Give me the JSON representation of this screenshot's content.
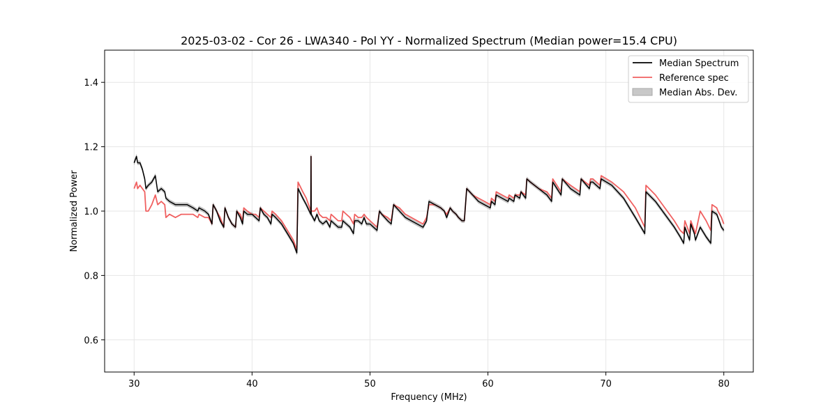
{
  "chart_data": {
    "type": "line",
    "title": "2025-03-02 - Cor 26 - LWA340 - Pol YY - Normalized Spectrum (Median power=15.4 CPU)",
    "xlabel": "Frequency (MHz)",
    "ylabel": "Normalized Power",
    "xlim": [
      27.5,
      82.5
    ],
    "ylim": [
      0.5,
      1.5
    ],
    "xticks": [
      30,
      40,
      50,
      60,
      70,
      80
    ],
    "yticks": [
      0.6,
      0.8,
      1.0,
      1.2,
      1.4
    ],
    "xtick_labels": [
      "30",
      "40",
      "50",
      "60",
      "70",
      "80"
    ],
    "ytick_labels": [
      "0.6",
      "0.8",
      "1.0",
      "1.2",
      "1.4"
    ],
    "grid": true,
    "legend_position": "top-right",
    "legend": [
      "Median Spectrum",
      "Reference spec",
      "Median Abs. Dev."
    ],
    "colors": {
      "median": "#000000",
      "reference": "#f06060",
      "mad_fill": "#c8c8c8",
      "grid": "#e6e6e6"
    },
    "mad_halfwidth": 0.006,
    "series": [
      {
        "name": "Median Spectrum",
        "x": [
          30.0,
          30.2,
          30.3,
          30.5,
          30.7,
          30.9,
          31.0,
          31.2,
          31.5,
          31.8,
          32.0,
          32.3,
          32.6,
          32.7,
          33.0,
          33.5,
          34.0,
          34.5,
          35.0,
          35.4,
          35.5,
          36.0,
          36.3,
          36.6,
          36.7,
          37.0,
          37.3,
          37.6,
          37.7,
          38.0,
          38.3,
          38.6,
          38.7,
          39.0,
          39.2,
          39.3,
          39.6,
          40.0,
          40.3,
          40.6,
          40.7,
          41.0,
          41.3,
          41.6,
          41.7,
          42.0,
          42.5,
          43.0,
          43.5,
          43.8,
          43.9,
          44.3,
          44.6,
          44.98,
          45.0,
          45.02,
          45.3,
          45.5,
          45.7,
          46.0,
          46.3,
          46.6,
          46.7,
          47.0,
          47.3,
          47.6,
          47.7,
          48.0,
          48.3,
          48.6,
          48.7,
          49.0,
          49.3,
          49.5,
          49.7,
          50.0,
          50.3,
          50.6,
          50.8,
          51.0,
          51.5,
          51.8,
          52.0,
          52.5,
          53.0,
          53.5,
          54.0,
          54.5,
          54.8,
          55.0,
          55.5,
          56.0,
          56.3,
          56.5,
          56.8,
          57.0,
          57.3,
          57.5,
          57.8,
          58.0,
          58.2,
          58.7,
          59.2,
          59.7,
          60.2,
          60.3,
          60.6,
          60.7,
          61.2,
          61.7,
          61.8,
          62.2,
          62.3,
          62.7,
          62.8,
          63.2,
          63.3,
          63.6,
          64.3,
          65.0,
          65.4,
          65.5,
          66.2,
          66.3,
          67.0,
          67.8,
          67.9,
          68.6,
          68.7,
          68.9,
          69.5,
          69.6,
          70.5,
          71.5,
          72.5,
          73.3,
          73.4,
          74.2,
          75.0,
          75.8,
          76.3,
          76.6,
          76.7,
          77.1,
          77.2,
          77.5,
          77.6,
          78.0,
          78.5,
          78.9,
          79.0,
          79.4,
          79.5,
          79.8,
          80.0
        ],
        "y": [
          1.15,
          1.17,
          1.15,
          1.15,
          1.13,
          1.1,
          1.07,
          1.08,
          1.09,
          1.11,
          1.06,
          1.07,
          1.06,
          1.04,
          1.03,
          1.02,
          1.02,
          1.02,
          1.01,
          1.0,
          1.01,
          1.0,
          0.99,
          0.96,
          1.02,
          1.0,
          0.97,
          0.95,
          1.01,
          0.98,
          0.96,
          0.95,
          1.0,
          0.98,
          0.96,
          1.0,
          0.99,
          0.99,
          0.98,
          0.97,
          1.01,
          0.99,
          0.98,
          0.96,
          0.99,
          0.98,
          0.96,
          0.93,
          0.9,
          0.87,
          1.07,
          1.04,
          1.02,
          0.99,
          1.17,
          0.99,
          0.97,
          0.99,
          0.97,
          0.96,
          0.97,
          0.95,
          0.97,
          0.96,
          0.95,
          0.95,
          0.97,
          0.96,
          0.95,
          0.93,
          0.97,
          0.97,
          0.96,
          0.98,
          0.96,
          0.96,
          0.95,
          0.94,
          1.0,
          0.99,
          0.97,
          0.96,
          1.02,
          1.0,
          0.98,
          0.97,
          0.96,
          0.95,
          0.97,
          1.03,
          1.02,
          1.01,
          1.0,
          0.98,
          1.01,
          1.0,
          0.99,
          0.98,
          0.97,
          0.97,
          1.07,
          1.05,
          1.03,
          1.02,
          1.01,
          1.03,
          1.02,
          1.05,
          1.04,
          1.03,
          1.04,
          1.03,
          1.05,
          1.04,
          1.06,
          1.04,
          1.1,
          1.09,
          1.07,
          1.05,
          1.03,
          1.09,
          1.05,
          1.1,
          1.07,
          1.05,
          1.1,
          1.07,
          1.09,
          1.09,
          1.07,
          1.1,
          1.08,
          1.04,
          0.98,
          0.93,
          1.06,
          1.03,
          0.99,
          0.95,
          0.92,
          0.9,
          0.95,
          0.91,
          0.96,
          0.93,
          0.91,
          0.95,
          0.92,
          0.9,
          1.0,
          0.99,
          0.98,
          0.95,
          0.94
        ]
      },
      {
        "name": "Reference spec",
        "x": [
          30.0,
          30.2,
          30.3,
          30.5,
          30.7,
          30.9,
          31.0,
          31.2,
          31.5,
          31.8,
          32.0,
          32.3,
          32.6,
          32.7,
          33.0,
          33.5,
          34.0,
          34.5,
          35.0,
          35.4,
          35.5,
          36.0,
          36.3,
          36.6,
          36.7,
          37.0,
          37.3,
          37.6,
          37.7,
          38.0,
          38.3,
          38.6,
          38.7,
          39.0,
          39.2,
          39.3,
          39.6,
          40.0,
          40.3,
          40.6,
          40.7,
          41.0,
          41.3,
          41.6,
          41.7,
          42.0,
          42.5,
          43.0,
          43.5,
          43.8,
          43.9,
          44.3,
          44.6,
          44.98,
          45.0,
          45.02,
          45.3,
          45.5,
          45.7,
          46.0,
          46.3,
          46.6,
          46.7,
          47.0,
          47.3,
          47.6,
          47.7,
          48.0,
          48.3,
          48.6,
          48.7,
          49.0,
          49.3,
          49.5,
          49.7,
          50.0,
          50.3,
          50.6,
          50.8,
          51.0,
          51.5,
          51.8,
          52.0,
          52.5,
          53.0,
          53.5,
          54.0,
          54.5,
          54.8,
          55.0,
          55.5,
          56.0,
          56.3,
          56.5,
          56.8,
          57.0,
          57.3,
          57.5,
          57.8,
          58.0,
          58.2,
          58.7,
          59.2,
          59.7,
          60.2,
          60.3,
          60.6,
          60.7,
          61.2,
          61.7,
          61.8,
          62.2,
          62.3,
          62.7,
          62.8,
          63.2,
          63.3,
          63.6,
          64.3,
          65.0,
          65.4,
          65.5,
          66.2,
          66.3,
          67.0,
          67.8,
          67.9,
          68.6,
          68.7,
          68.9,
          69.5,
          69.6,
          70.5,
          71.5,
          72.5,
          73.3,
          73.4,
          74.2,
          75.0,
          75.8,
          76.3,
          76.6,
          76.7,
          77.1,
          77.2,
          77.5,
          77.6,
          78.0,
          78.5,
          78.9,
          79.0,
          79.4,
          79.5,
          79.8,
          80.0
        ],
        "y": [
          1.07,
          1.09,
          1.07,
          1.08,
          1.07,
          1.06,
          1.0,
          1.0,
          1.02,
          1.05,
          1.02,
          1.03,
          1.02,
          0.98,
          0.99,
          0.98,
          0.99,
          0.99,
          0.99,
          0.98,
          0.99,
          0.98,
          0.98,
          0.96,
          1.02,
          1.0,
          0.98,
          0.95,
          1.01,
          0.98,
          0.96,
          0.95,
          1.0,
          0.99,
          0.97,
          1.01,
          1.0,
          0.99,
          0.99,
          0.98,
          1.01,
          1.0,
          0.99,
          0.98,
          1.0,
          0.99,
          0.97,
          0.94,
          0.91,
          0.88,
          1.09,
          1.06,
          1.04,
          1.0,
          1.17,
          1.0,
          1.0,
          1.01,
          0.99,
          0.98,
          0.98,
          0.97,
          0.99,
          0.98,
          0.97,
          0.97,
          1.0,
          0.99,
          0.98,
          0.96,
          0.99,
          0.98,
          0.98,
          0.99,
          0.98,
          0.97,
          0.96,
          0.95,
          1.0,
          0.99,
          0.98,
          0.97,
          1.02,
          1.01,
          0.99,
          0.98,
          0.97,
          0.96,
          0.98,
          1.02,
          1.02,
          1.01,
          1.0,
          0.99,
          1.01,
          1.0,
          0.99,
          0.98,
          0.97,
          0.97,
          1.07,
          1.05,
          1.04,
          1.03,
          1.02,
          1.04,
          1.03,
          1.06,
          1.05,
          1.04,
          1.05,
          1.04,
          1.05,
          1.05,
          1.06,
          1.05,
          1.1,
          1.09,
          1.07,
          1.06,
          1.04,
          1.1,
          1.06,
          1.1,
          1.08,
          1.06,
          1.1,
          1.08,
          1.1,
          1.1,
          1.08,
          1.11,
          1.09,
          1.06,
          1.01,
          0.95,
          1.08,
          1.05,
          1.01,
          0.97,
          0.94,
          0.93,
          0.97,
          0.93,
          0.97,
          0.94,
          0.93,
          1.0,
          0.97,
          0.94,
          1.02,
          1.01,
          1.0,
          0.98,
          0.96
        ]
      }
    ]
  }
}
